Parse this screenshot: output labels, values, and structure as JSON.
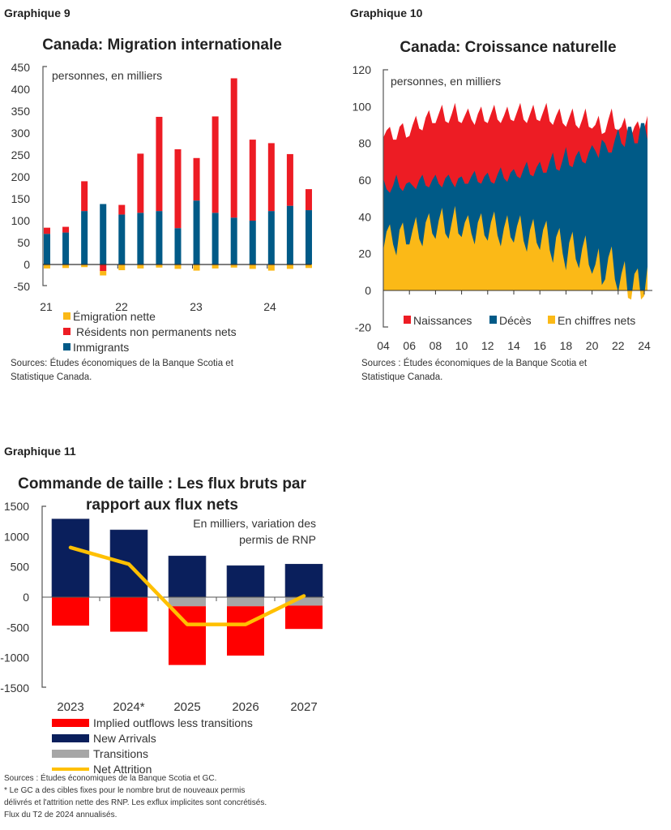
{
  "chart_data": [
    {
      "type": "bar",
      "label": "Graphique 9",
      "title": "Canada: Migration internationale",
      "unit_note": "personnes, en milliers",
      "stacked": true,
      "categories": [
        "21T1",
        "21T2",
        "21T3",
        "21T4",
        "22T1",
        "22T2",
        "22T3",
        "22T4",
        "23T1",
        "23T2",
        "23T3",
        "23T4",
        "24T1",
        "24T2",
        "24T3"
      ],
      "xtick_labels": [
        "21",
        "22",
        "23",
        "24"
      ],
      "ytick_labels": [
        "450",
        "400",
        "350",
        "300",
        "250",
        "200",
        "150",
        "100",
        "50",
        "0",
        "-50"
      ],
      "ylim": [
        -50,
        450
      ],
      "series": [
        {
          "name": "Émigration nette",
          "color": "#fbb917",
          "values": [
            -9,
            -8,
            -6,
            -10,
            -13,
            -9,
            -7,
            -10,
            -14,
            -9,
            -7,
            -10,
            -14,
            -10,
            -8
          ]
        },
        {
          "name": "Résidents non permanents nets",
          "color": "#ed1c24",
          "values": [
            14,
            13,
            68,
            -15,
            22,
            135,
            215,
            180,
            97,
            220,
            318,
            185,
            155,
            118,
            48
          ]
        },
        {
          "name": "Immigrants",
          "color": "#005a87",
          "values": [
            70,
            73,
            122,
            138,
            114,
            118,
            122,
            83,
            146,
            118,
            107,
            100,
            122,
            134,
            124
          ]
        }
      ],
      "sources": [
        "Sources: Études économiques de la Banque Scotia et",
        "Statistique Canada."
      ]
    },
    {
      "type": "area",
      "label": "Graphique 10",
      "title": "Canada: Croissance naturelle",
      "unit_note": "personnes, en milliers",
      "x_start": "2004T1",
      "frequency": "quarterly",
      "xtick_labels": [
        "04",
        "06",
        "08",
        "10",
        "12",
        "14",
        "16",
        "18",
        "20",
        "22",
        "24"
      ],
      "ytick_labels": [
        "120",
        "100",
        "80",
        "60",
        "40",
        "20",
        "0",
        "-20"
      ],
      "ylim": [
        -20,
        120
      ],
      "series": [
        {
          "name": "Naissances",
          "color": "#ed1c24",
          "values": [
            83,
            87,
            89,
            82,
            82,
            89,
            91,
            83,
            84,
            90,
            95,
            88,
            87,
            94,
            98,
            91,
            91,
            96,
            101,
            92,
            91,
            96,
            102,
            92,
            91,
            95,
            99,
            93,
            90,
            96,
            100,
            92,
            91,
            96,
            101,
            93,
            91,
            95,
            100,
            93,
            92,
            97,
            102,
            93,
            91,
            96,
            101,
            93,
            92,
            97,
            102,
            92,
            90,
            95,
            99,
            91,
            89,
            94,
            99,
            90,
            88,
            93,
            99,
            89,
            88,
            90,
            95,
            85,
            86,
            93,
            99,
            88,
            87,
            89,
            94,
            85,
            84,
            89,
            92,
            86,
            88,
            95
          ]
        },
        {
          "name": "Décès",
          "color": "#005a87",
          "values": [
            61,
            55,
            53,
            57,
            63,
            56,
            54,
            58,
            59,
            57,
            55,
            60,
            63,
            57,
            56,
            60,
            63,
            58,
            56,
            61,
            63,
            59,
            56,
            61,
            62,
            58,
            58,
            62,
            65,
            59,
            58,
            62,
            64,
            59,
            58,
            63,
            67,
            61,
            59,
            64,
            66,
            62,
            61,
            66,
            70,
            63,
            62,
            67,
            70,
            64,
            64,
            70,
            75,
            66,
            65,
            71,
            78,
            68,
            67,
            73,
            76,
            70,
            69,
            75,
            79,
            76,
            72,
            82,
            80,
            75,
            75,
            82,
            88,
            80,
            78,
            89,
            89,
            80,
            80,
            91,
            91,
            82
          ]
        },
        {
          "name": "En chiffres nets",
          "color": "#fbb917",
          "derived": "Naissances - Décès"
        }
      ],
      "sources": [
        "Sources : Études économiques de la Banque Scotia et",
        "Statistique Canada."
      ]
    },
    {
      "type": "bar",
      "label": "Graphique 11",
      "title_lines": [
        "Commande de taille : Les flux bruts par",
        "rapport aux flux nets"
      ],
      "unit_note_lines": [
        "En milliers, variation des",
        "permis de RNP"
      ],
      "stacked": true,
      "categories": [
        "2023",
        "2024*",
        "2025",
        "2026",
        "2027"
      ],
      "ytick_labels": [
        "1500",
        "1000",
        "500",
        "0",
        "-500",
        "-1000",
        "-1500"
      ],
      "ylim": [
        -1500,
        1500
      ],
      "series": [
        {
          "name": "Implied outflows less transitions",
          "color": "#ff0000",
          "values": [
            -470,
            -570,
            -970,
            -815,
            -385
          ]
        },
        {
          "name": "New Arrivals",
          "color": "#0a1f5c",
          "values": [
            1290,
            1110,
            680,
            520,
            545
          ]
        },
        {
          "name": "Transitions",
          "color": "#a6a6a6",
          "values": [
            0,
            0,
            -150,
            -150,
            -140
          ]
        },
        {
          "name": "Net Attrition",
          "color": "#ffc000",
          "type": "line",
          "values": [
            820,
            545,
            -450,
            -450,
            20
          ]
        }
      ],
      "sources": [
        "Sources : Études économiques de la Banque Scotia et GC.",
        "* Le GC a des cibles fixes pour le nombre brut de nouveaux permis",
        "délivrés et l'attrition nette des RNP. Les exflux implicites sont concrétisés.",
        "Flux du T2 de 2024 annualisés."
      ]
    }
  ]
}
